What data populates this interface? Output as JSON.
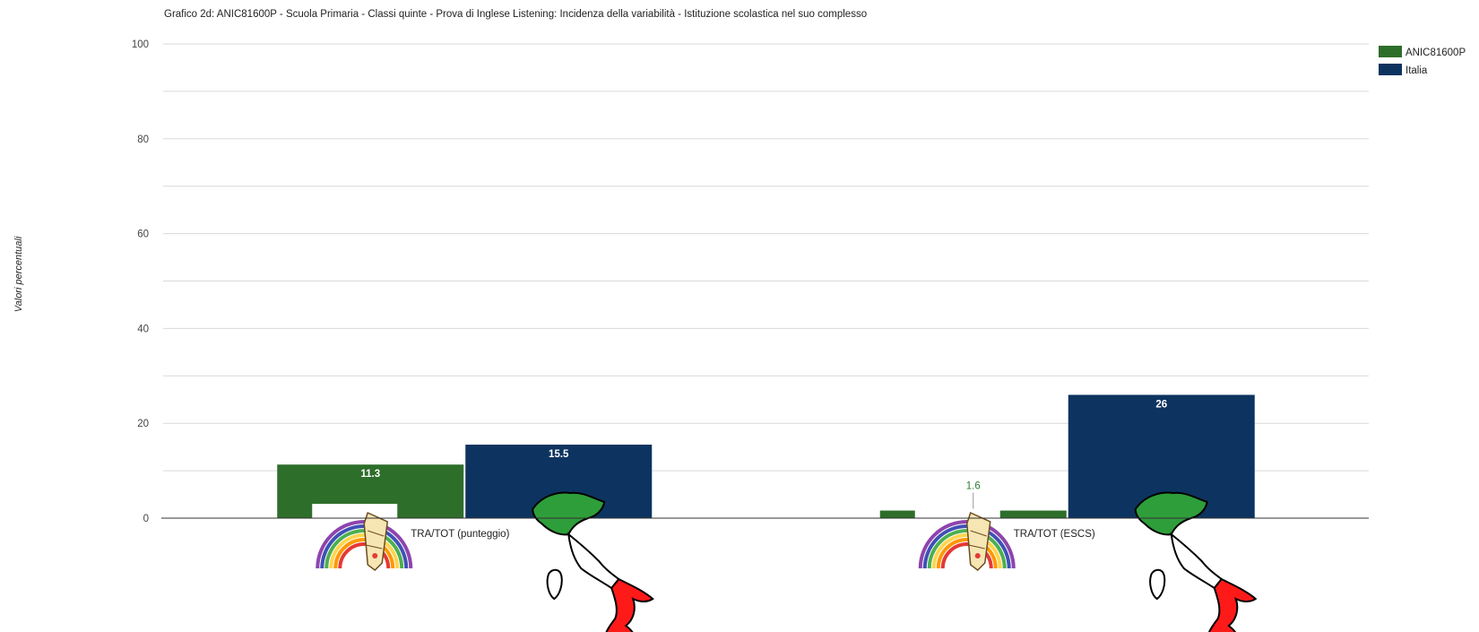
{
  "chart_data": {
    "type": "bar",
    "title": "Grafico 2d: ANIC81600P - Scuola Primaria - Classi quinte - Prova di Inglese Listening: Incidenza della variabilità - Istituzione scolastica nel suo complesso",
    "ylabel": "Valori percentuali",
    "xlabel": "",
    "ylim": [
      0,
      100
    ],
    "yticks": [
      "0",
      "20",
      "40",
      "60",
      "80",
      "100"
    ],
    "categories": [
      "TRA/TOT (punteggio)",
      "TRA/TOT (ESCS)"
    ],
    "series": [
      {
        "name": "ANIC81600P",
        "color": "#2e6e2b",
        "values": [
          11.3,
          1.6
        ]
      },
      {
        "name": "Italia",
        "color": "#0d3460",
        "values": [
          15.5,
          26
        ]
      }
    ],
    "value_labels": [
      [
        "11.3",
        "1.6"
      ],
      [
        "15.5",
        "26"
      ]
    ],
    "legend_position": "top-right",
    "grid": true
  }
}
